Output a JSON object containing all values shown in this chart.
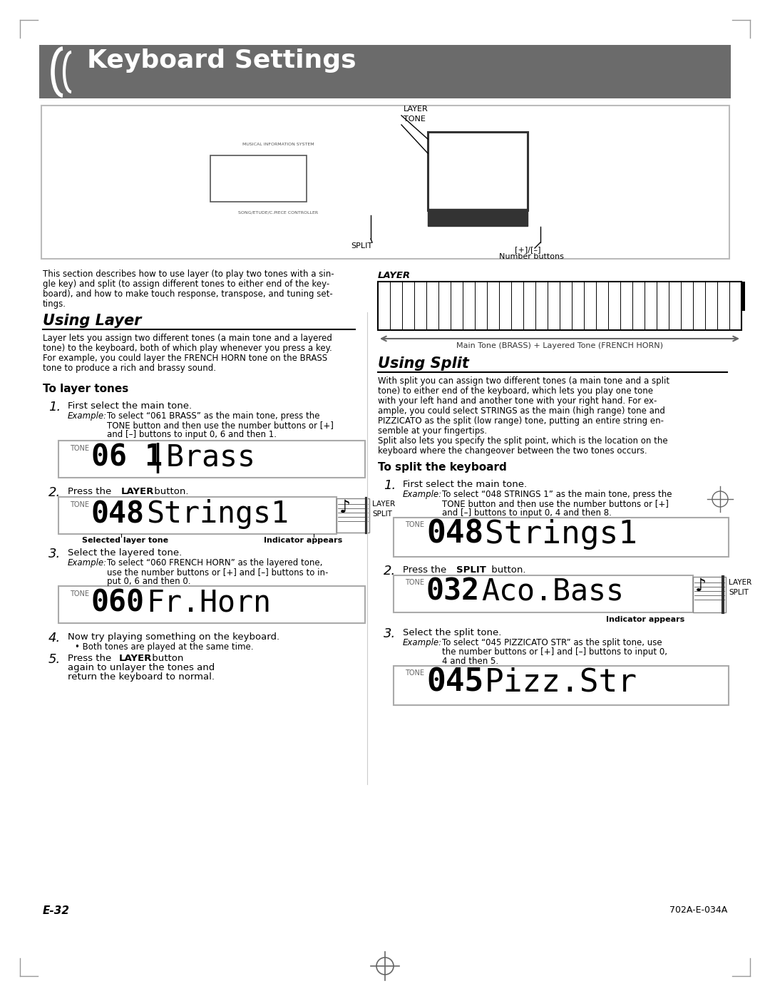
{
  "title": "Keyboard Settings",
  "bg_color": "#ffffff",
  "header_bg": "#6b6b6b",
  "page_number": "E-32",
  "page_code": "702A-E-034A"
}
